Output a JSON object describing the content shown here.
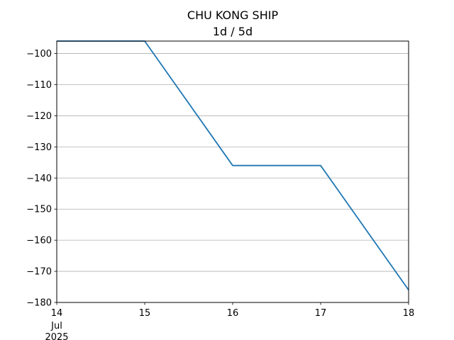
{
  "chart_data": {
    "type": "line",
    "title": "CHU KONG SHIP",
    "subtitle": "1d / 5d",
    "x": [
      "2025-07-14",
      "2025-07-15",
      "2025-07-16",
      "2025-07-17",
      "2025-07-18"
    ],
    "x_tick_labels": [
      "14",
      "15",
      "16",
      "17",
      "18"
    ],
    "x_tick_sublabels": [
      "Jul",
      "2025"
    ],
    "xlim": [
      "2025-07-14",
      "2025-07-18"
    ],
    "ylim": [
      -180,
      -96
    ],
    "y_ticks": [
      -100,
      -110,
      -120,
      -130,
      -140,
      -150,
      -160,
      -170,
      -180
    ],
    "y_tick_labels": [
      "−100",
      "−110",
      "−120",
      "−130",
      "−140",
      "−150",
      "−160",
      "−170",
      "−180"
    ],
    "grid": "y",
    "series": [
      {
        "values": [
          -96,
          -96,
          -136,
          -136,
          -176
        ],
        "color": "#1f77b4"
      }
    ]
  }
}
